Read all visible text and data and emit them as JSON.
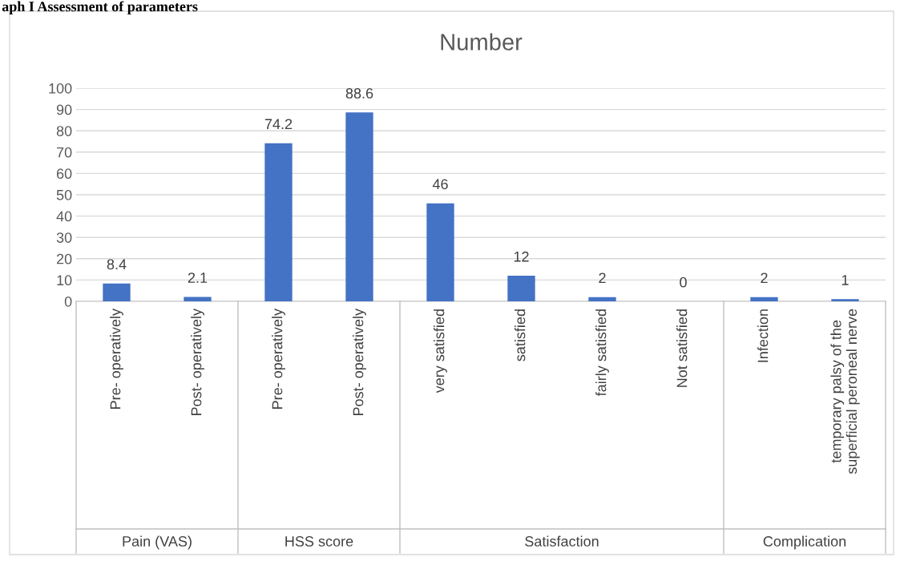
{
  "chart_data": {
    "type": "bar",
    "title": "Number",
    "categories": [
      "Pre- operatively",
      "Post- operatively",
      "Pre- operatively",
      "Post- operatively",
      "very satisfied",
      "satisfied",
      "fairly satisfied",
      "Not satisfied",
      "Infection",
      "temporary palsy of the\nsuperficial peroneal nerve"
    ],
    "values": [
      8.4,
      2.1,
      74.2,
      88.6,
      46,
      12,
      2,
      0,
      2,
      1
    ],
    "color": "#4472c4",
    "ylim": [
      0,
      100
    ],
    "yticks": [
      0,
      10,
      20,
      30,
      40,
      50,
      60,
      70,
      80,
      90,
      100
    ],
    "grid": "y",
    "data_labels": true,
    "annotations": [
      "aph I Assessment of parameters",
      "Pain (VAS)",
      "HSS score",
      "Satisfaction",
      "Complication"
    ]
  }
}
